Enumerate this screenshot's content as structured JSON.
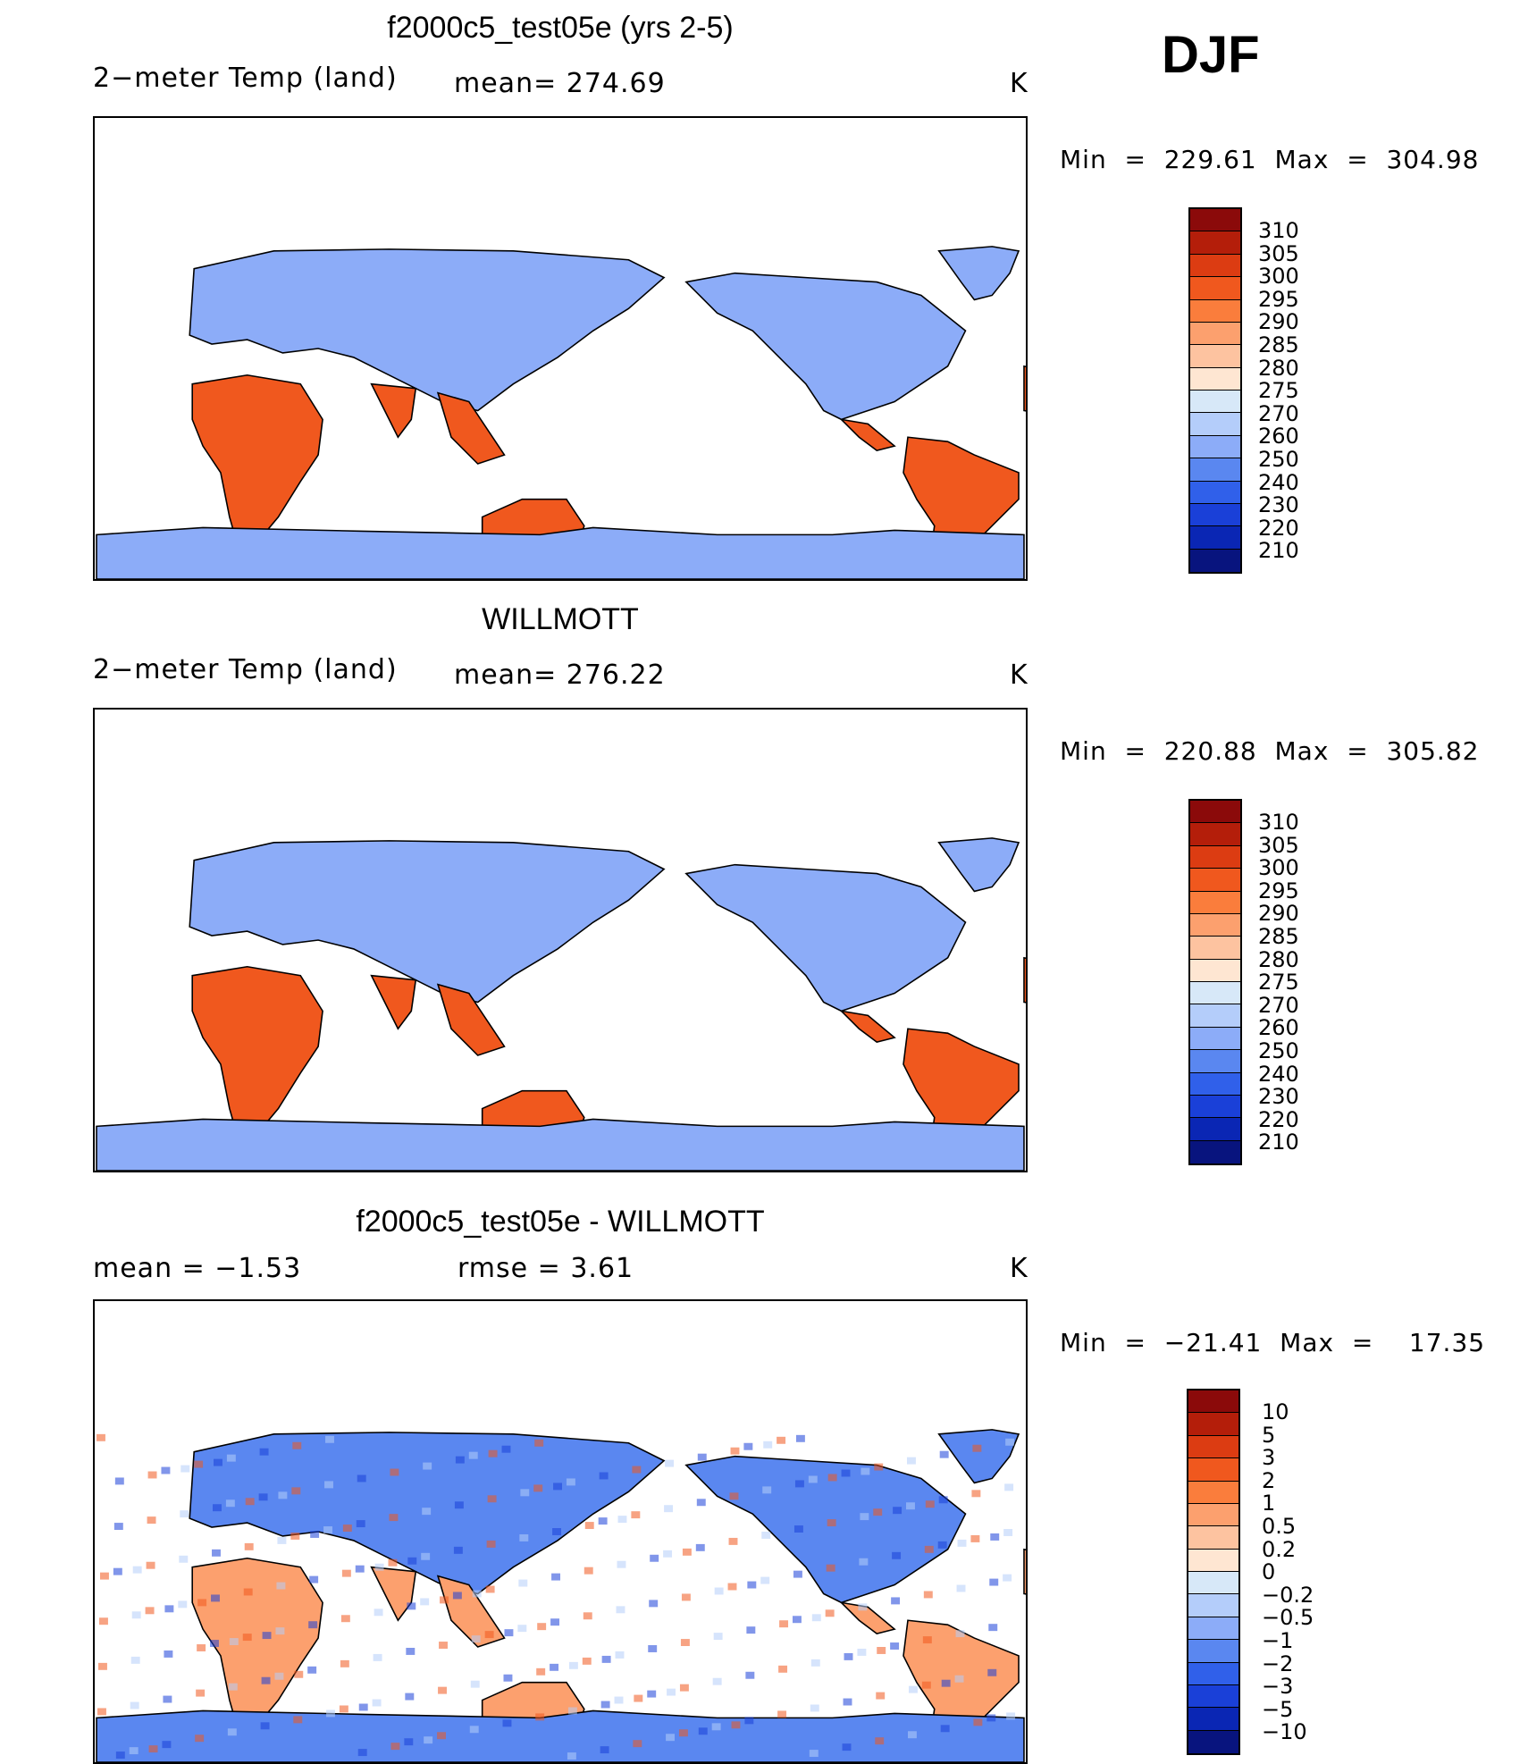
{
  "season": "DJF",
  "panels": [
    {
      "title": "f2000c5_test05e (yrs 2-5)",
      "left_label": "2−meter Temp (land)",
      "stat1": "mean=  274.69",
      "stat2": "",
      "units": "K",
      "minmax": "Min  =  229.61  Max  =  304.98",
      "palette": "abs"
    },
    {
      "title": "WILLMOTT",
      "left_label": "2−meter Temp (land)",
      "stat1": "mean=  276.22",
      "stat2": "",
      "units": "K",
      "minmax": "Min  =  220.88  Max  =  305.82",
      "palette": "abs"
    },
    {
      "title": "f2000c5_test05e - WILLMOTT",
      "left_label": "mean  =    −1.53",
      "stat1": "rmse  =     3.61",
      "stat2": "",
      "units": "K",
      "minmax": "Min  =  −21.41  Max  =    17.35",
      "palette": "diff"
    }
  ],
  "colorbar_abs": {
    "labels": [
      "310",
      "305",
      "300",
      "295",
      "290",
      "285",
      "280",
      "275",
      "270",
      "260",
      "250",
      "240",
      "230",
      "220",
      "210"
    ],
    "colors": [
      "#8b0a0a",
      "#b41e0a",
      "#dc3c12",
      "#f0581e",
      "#fa7d3c",
      "#fca06e",
      "#fdc3a0",
      "#fee6d2",
      "#d7e8f8",
      "#b4cdfa",
      "#8cacf8",
      "#5a87f0",
      "#3060ea",
      "#1a40d8",
      "#0a26b4",
      "#08147e"
    ]
  },
  "colorbar_diff": {
    "labels": [
      "10",
      "5",
      "3",
      "2",
      "1",
      "0.5",
      "0.2",
      "0",
      "−0.2",
      "−0.5",
      "−1",
      "−2",
      "−3",
      "−5",
      "−10"
    ],
    "colors": [
      "#8b0a0a",
      "#b41e0a",
      "#dc3c12",
      "#f0581e",
      "#fa7d3c",
      "#fca06e",
      "#fdc3a0",
      "#fee6d2",
      "#d7e8f8",
      "#b4cdfa",
      "#8cacf8",
      "#5a87f0",
      "#3060ea",
      "#1a40d8",
      "#0a26b4",
      "#08147e"
    ]
  }
}
